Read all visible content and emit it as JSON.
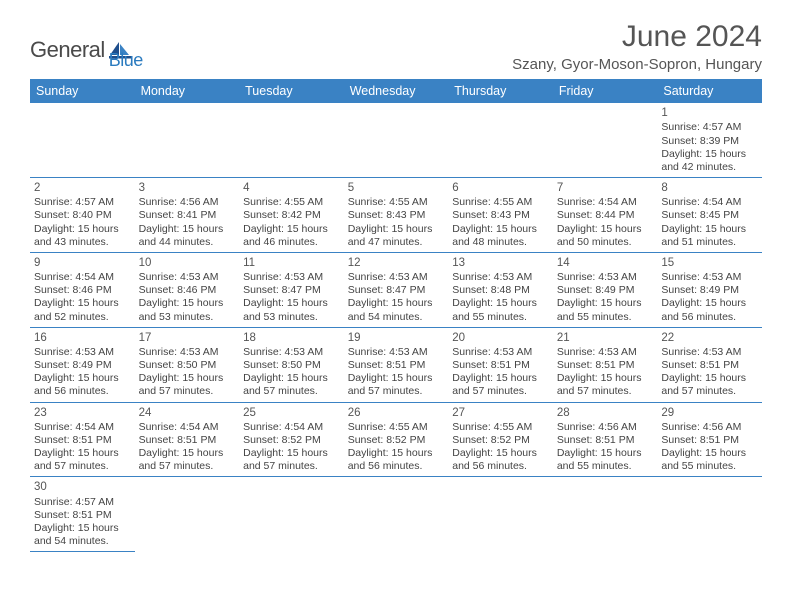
{
  "brand": {
    "general": "General",
    "blue": "Blue"
  },
  "title": "June 2024",
  "location": "Szany, Gyor-Moson-Sopron, Hungary",
  "colors": {
    "header_bg": "#3a82c4",
    "header_text": "#ffffff",
    "cell_border": "#3a82c4",
    "text": "#444444",
    "title_text": "#555555",
    "logo_gray": "#4a4a4a",
    "logo_blue": "#2b7bbf",
    "background": "#ffffff"
  },
  "weekdays": [
    "Sunday",
    "Monday",
    "Tuesday",
    "Wednesday",
    "Thursday",
    "Friday",
    "Saturday"
  ],
  "weeks": [
    [
      null,
      null,
      null,
      null,
      null,
      null,
      {
        "d": "1",
        "sr": "Sunrise: 4:57 AM",
        "ss": "Sunset: 8:39 PM",
        "dl1": "Daylight: 15 hours",
        "dl2": "and 42 minutes."
      }
    ],
    [
      {
        "d": "2",
        "sr": "Sunrise: 4:57 AM",
        "ss": "Sunset: 8:40 PM",
        "dl1": "Daylight: 15 hours",
        "dl2": "and 43 minutes."
      },
      {
        "d": "3",
        "sr": "Sunrise: 4:56 AM",
        "ss": "Sunset: 8:41 PM",
        "dl1": "Daylight: 15 hours",
        "dl2": "and 44 minutes."
      },
      {
        "d": "4",
        "sr": "Sunrise: 4:55 AM",
        "ss": "Sunset: 8:42 PM",
        "dl1": "Daylight: 15 hours",
        "dl2": "and 46 minutes."
      },
      {
        "d": "5",
        "sr": "Sunrise: 4:55 AM",
        "ss": "Sunset: 8:43 PM",
        "dl1": "Daylight: 15 hours",
        "dl2": "and 47 minutes."
      },
      {
        "d": "6",
        "sr": "Sunrise: 4:55 AM",
        "ss": "Sunset: 8:43 PM",
        "dl1": "Daylight: 15 hours",
        "dl2": "and 48 minutes."
      },
      {
        "d": "7",
        "sr": "Sunrise: 4:54 AM",
        "ss": "Sunset: 8:44 PM",
        "dl1": "Daylight: 15 hours",
        "dl2": "and 50 minutes."
      },
      {
        "d": "8",
        "sr": "Sunrise: 4:54 AM",
        "ss": "Sunset: 8:45 PM",
        "dl1": "Daylight: 15 hours",
        "dl2": "and 51 minutes."
      }
    ],
    [
      {
        "d": "9",
        "sr": "Sunrise: 4:54 AM",
        "ss": "Sunset: 8:46 PM",
        "dl1": "Daylight: 15 hours",
        "dl2": "and 52 minutes."
      },
      {
        "d": "10",
        "sr": "Sunrise: 4:53 AM",
        "ss": "Sunset: 8:46 PM",
        "dl1": "Daylight: 15 hours",
        "dl2": "and 53 minutes."
      },
      {
        "d": "11",
        "sr": "Sunrise: 4:53 AM",
        "ss": "Sunset: 8:47 PM",
        "dl1": "Daylight: 15 hours",
        "dl2": "and 53 minutes."
      },
      {
        "d": "12",
        "sr": "Sunrise: 4:53 AM",
        "ss": "Sunset: 8:47 PM",
        "dl1": "Daylight: 15 hours",
        "dl2": "and 54 minutes."
      },
      {
        "d": "13",
        "sr": "Sunrise: 4:53 AM",
        "ss": "Sunset: 8:48 PM",
        "dl1": "Daylight: 15 hours",
        "dl2": "and 55 minutes."
      },
      {
        "d": "14",
        "sr": "Sunrise: 4:53 AM",
        "ss": "Sunset: 8:49 PM",
        "dl1": "Daylight: 15 hours",
        "dl2": "and 55 minutes."
      },
      {
        "d": "15",
        "sr": "Sunrise: 4:53 AM",
        "ss": "Sunset: 8:49 PM",
        "dl1": "Daylight: 15 hours",
        "dl2": "and 56 minutes."
      }
    ],
    [
      {
        "d": "16",
        "sr": "Sunrise: 4:53 AM",
        "ss": "Sunset: 8:49 PM",
        "dl1": "Daylight: 15 hours",
        "dl2": "and 56 minutes."
      },
      {
        "d": "17",
        "sr": "Sunrise: 4:53 AM",
        "ss": "Sunset: 8:50 PM",
        "dl1": "Daylight: 15 hours",
        "dl2": "and 57 minutes."
      },
      {
        "d": "18",
        "sr": "Sunrise: 4:53 AM",
        "ss": "Sunset: 8:50 PM",
        "dl1": "Daylight: 15 hours",
        "dl2": "and 57 minutes."
      },
      {
        "d": "19",
        "sr": "Sunrise: 4:53 AM",
        "ss": "Sunset: 8:51 PM",
        "dl1": "Daylight: 15 hours",
        "dl2": "and 57 minutes."
      },
      {
        "d": "20",
        "sr": "Sunrise: 4:53 AM",
        "ss": "Sunset: 8:51 PM",
        "dl1": "Daylight: 15 hours",
        "dl2": "and 57 minutes."
      },
      {
        "d": "21",
        "sr": "Sunrise: 4:53 AM",
        "ss": "Sunset: 8:51 PM",
        "dl1": "Daylight: 15 hours",
        "dl2": "and 57 minutes."
      },
      {
        "d": "22",
        "sr": "Sunrise: 4:53 AM",
        "ss": "Sunset: 8:51 PM",
        "dl1": "Daylight: 15 hours",
        "dl2": "and 57 minutes."
      }
    ],
    [
      {
        "d": "23",
        "sr": "Sunrise: 4:54 AM",
        "ss": "Sunset: 8:51 PM",
        "dl1": "Daylight: 15 hours",
        "dl2": "and 57 minutes."
      },
      {
        "d": "24",
        "sr": "Sunrise: 4:54 AM",
        "ss": "Sunset: 8:51 PM",
        "dl1": "Daylight: 15 hours",
        "dl2": "and 57 minutes."
      },
      {
        "d": "25",
        "sr": "Sunrise: 4:54 AM",
        "ss": "Sunset: 8:52 PM",
        "dl1": "Daylight: 15 hours",
        "dl2": "and 57 minutes."
      },
      {
        "d": "26",
        "sr": "Sunrise: 4:55 AM",
        "ss": "Sunset: 8:52 PM",
        "dl1": "Daylight: 15 hours",
        "dl2": "and 56 minutes."
      },
      {
        "d": "27",
        "sr": "Sunrise: 4:55 AM",
        "ss": "Sunset: 8:52 PM",
        "dl1": "Daylight: 15 hours",
        "dl2": "and 56 minutes."
      },
      {
        "d": "28",
        "sr": "Sunrise: 4:56 AM",
        "ss": "Sunset: 8:51 PM",
        "dl1": "Daylight: 15 hours",
        "dl2": "and 55 minutes."
      },
      {
        "d": "29",
        "sr": "Sunrise: 4:56 AM",
        "ss": "Sunset: 8:51 PM",
        "dl1": "Daylight: 15 hours",
        "dl2": "and 55 minutes."
      }
    ],
    [
      {
        "d": "30",
        "sr": "Sunrise: 4:57 AM",
        "ss": "Sunset: 8:51 PM",
        "dl1": "Daylight: 15 hours",
        "dl2": "and 54 minutes."
      },
      null,
      null,
      null,
      null,
      null,
      null
    ]
  ]
}
